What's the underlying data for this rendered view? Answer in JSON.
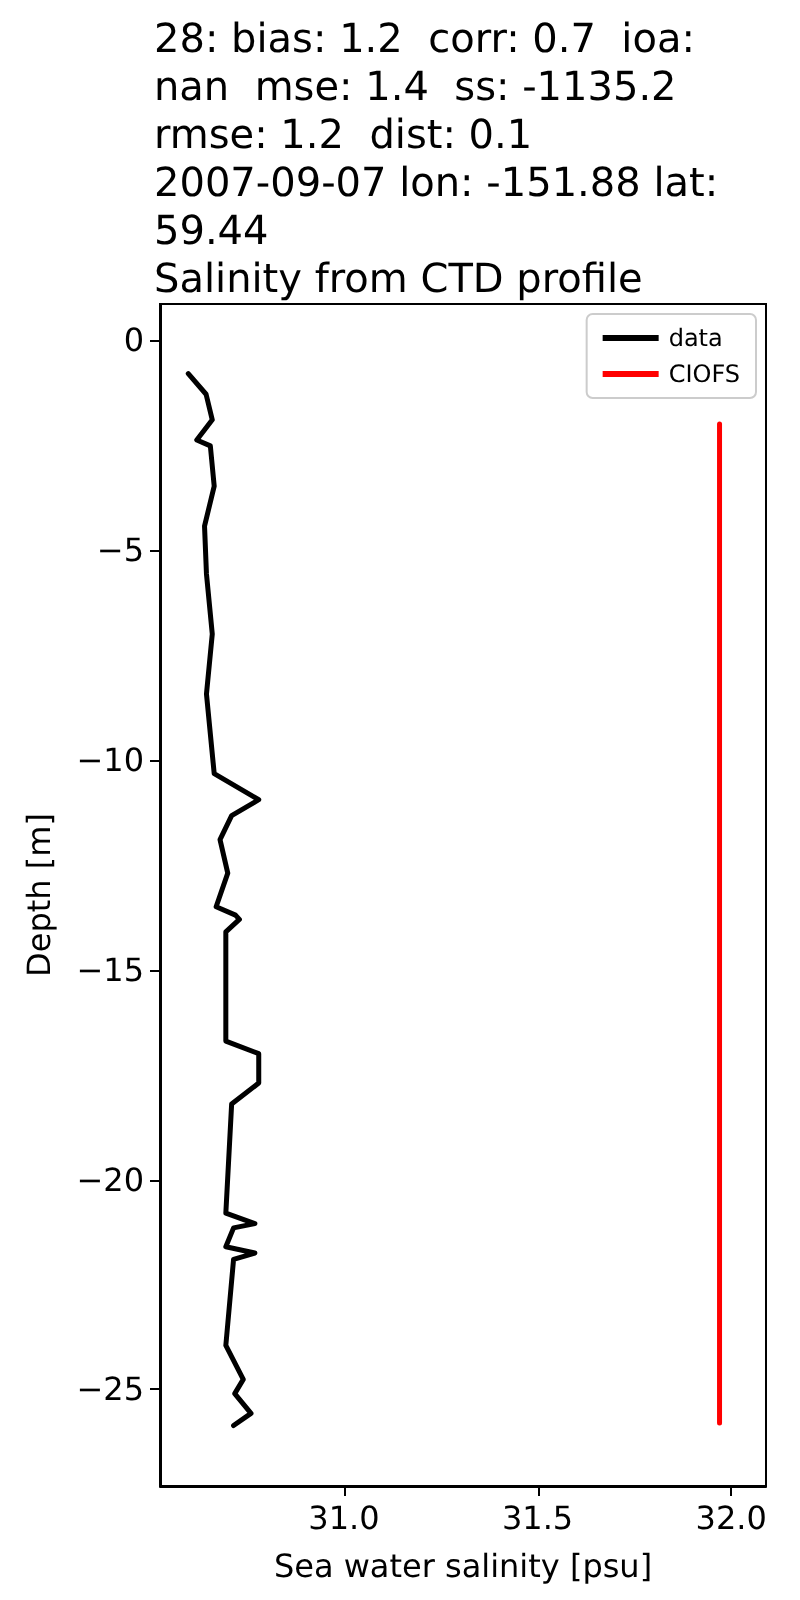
{
  "chart_data": {
    "type": "line",
    "title": "28: bias: 1.2  corr: 0.7  ioa:\nnan  mse: 1.4  ss: -1135.2\nrmse: 1.2  dist: 0.1\n2007-09-07 lon: -151.88 lat:\n59.44",
    "subtitle": "Salinity from CTD profile",
    "xlabel": "Sea water salinity [psu]",
    "ylabel": "Depth [m]",
    "series": [
      {
        "name": "data",
        "color": "#000000",
        "x": [
          30.598,
          30.644,
          30.66,
          30.62,
          30.655,
          30.665,
          30.64,
          30.645,
          30.66,
          30.645,
          30.665,
          30.78,
          30.71,
          30.68,
          30.7,
          30.67,
          30.72,
          30.73,
          30.695,
          30.695,
          30.78,
          30.78,
          30.71,
          30.695,
          30.77,
          30.715,
          30.695,
          30.77,
          30.715,
          30.695,
          30.74,
          30.718,
          30.76,
          30.715
        ],
        "values": [
          -0.8,
          -1.29,
          -1.9,
          -2.38,
          -2.52,
          -3.48,
          -4.43,
          -5.57,
          -7.0,
          -8.43,
          -10.33,
          -10.95,
          -11.33,
          -11.9,
          -12.7,
          -13.5,
          -13.7,
          -13.8,
          -14.1,
          -16.7,
          -17.0,
          -17.7,
          -18.2,
          -20.8,
          -21.05,
          -21.15,
          -21.6,
          -21.75,
          -21.9,
          -23.95,
          -24.76,
          -25.1,
          -25.57,
          -25.86
        ]
      },
      {
        "name": "CIOFS",
        "color": "#ff0000",
        "x": [
          31.97,
          31.97
        ],
        "values": [
          -2.0,
          -25.8
        ]
      }
    ],
    "xlim": [
      30.525,
      32.09
    ],
    "ylim": [
      -27.3,
      0.86
    ],
    "xticks": [
      {
        "value": 31,
        "label": "31.0"
      },
      {
        "value": 31.5,
        "label": "31.5"
      },
      {
        "value": 32,
        "label": "32.0"
      }
    ],
    "yticks": [
      {
        "value": -25,
        "label": "−25"
      },
      {
        "value": -20,
        "label": "−20"
      },
      {
        "value": -15,
        "label": "−15"
      },
      {
        "value": -10,
        "label": "−10"
      },
      {
        "value": -5,
        "label": "−5"
      },
      0
    ],
    "grid": false,
    "legend": "top right",
    "marker": "none",
    "line_style": "solid"
  }
}
